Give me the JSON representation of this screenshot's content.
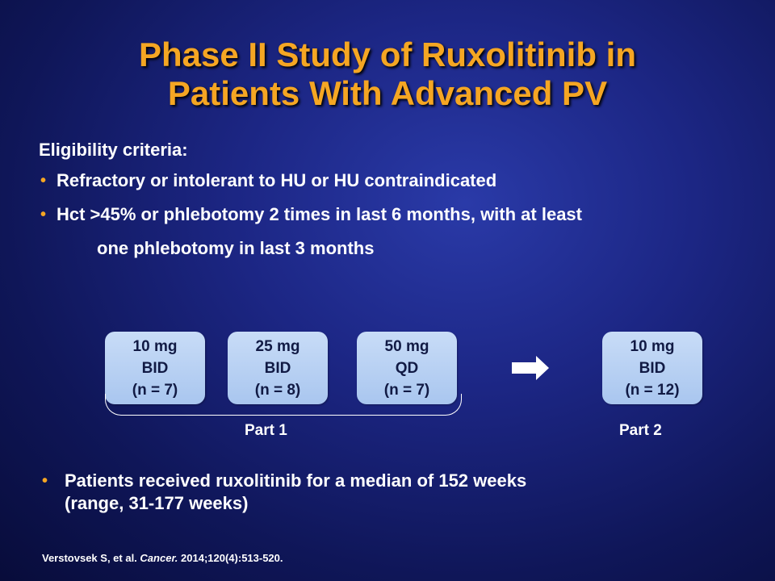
{
  "title": {
    "line1": "Phase II Study of Ruxolitinib in",
    "line2": "Patients With Advanced PV"
  },
  "eligibility": {
    "heading": "Eligibility criteria:",
    "bullets": [
      {
        "text": "Refractory or intolerant to HU or HU contraindicated"
      },
      {
        "text": "Hct >45% or phlebotomy 2 times in last 6 months, with at least",
        "continuation": "one phlebotomy in last 3 months"
      }
    ]
  },
  "diagram": {
    "part1": {
      "label": "Part 1",
      "arms": [
        {
          "dose": "10 mg",
          "schedule": "BID",
          "n": "(n = 7)"
        },
        {
          "dose": "25 mg",
          "schedule": "BID",
          "n": "(n =  8)"
        },
        {
          "dose": "50 mg",
          "schedule": "QD",
          "n": "(n = 7)"
        }
      ]
    },
    "part2": {
      "label": "Part 2",
      "arm": {
        "dose": "10 mg",
        "schedule": "BID",
        "n": "(n = 12)"
      }
    },
    "arrow_icon": "right-arrow-icon",
    "box_color": "#b9d2f3",
    "title_color": "#f5a623"
  },
  "result": {
    "line1": "Patients received ruxolitinib for a median of 152 weeks",
    "line2": "(range, 31-177 weeks)"
  },
  "citation": {
    "authors": "Verstovsek S, et al.",
    "journal": "Cancer.",
    "details": "2014;120(4):513-520."
  }
}
